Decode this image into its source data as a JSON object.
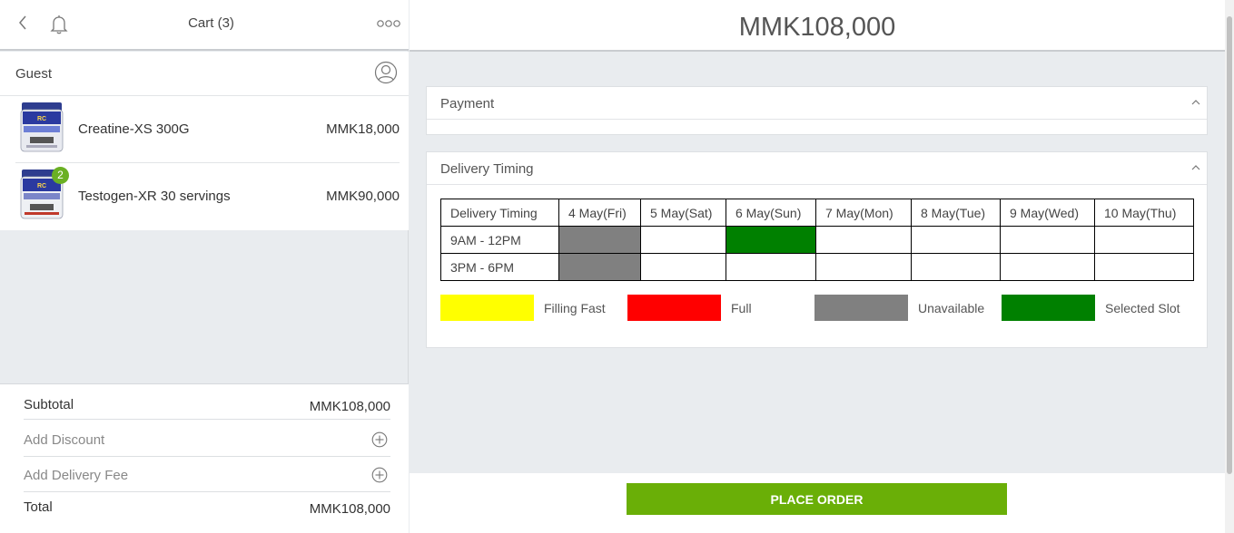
{
  "cart": {
    "title": "Cart (3)",
    "customer": "Guest",
    "items": [
      {
        "name": "Creatine-XS 300G",
        "price": "MMK18,000",
        "quantity_badge": ""
      },
      {
        "name": "Testogen-XR 30 servings",
        "price": "MMK90,000",
        "quantity_badge": "2"
      }
    ],
    "totals": {
      "subtotal_label": "Subtotal",
      "subtotal_value": "MMK108,000",
      "discount_label": "Add Discount",
      "delivery_fee_label": "Add Delivery Fee",
      "total_label": "Total",
      "total_value": "MMK108,000"
    }
  },
  "main": {
    "amount": "MMK108,000",
    "payment_section": {
      "title": "Payment"
    },
    "delivery_section": {
      "title": "Delivery Timing",
      "header_label": "Delivery Timing",
      "dates": [
        "4 May(Fri)",
        "5 May(Sat)",
        "6 May(Sun)",
        "7 May(Mon)",
        "8 May(Tue)",
        "9 May(Wed)",
        "10 May(Thu)"
      ],
      "time_slots": [
        {
          "label": "9AM - 12PM",
          "states": [
            "unavailable",
            "available",
            "selected",
            "available",
            "available",
            "available",
            "available"
          ]
        },
        {
          "label": "3PM - 6PM",
          "states": [
            "unavailable",
            "available",
            "available",
            "available",
            "available",
            "available",
            "available"
          ]
        }
      ],
      "legend": [
        {
          "label": "Filling Fast",
          "color": "#ffff00"
        },
        {
          "label": "Full",
          "color": "#ff0000"
        },
        {
          "label": "Unavailable",
          "color": "#808080"
        },
        {
          "label": "Selected Slot",
          "color": "#008000"
        }
      ]
    },
    "place_order_label": "PLACE ORDER"
  },
  "colors": {
    "accent_green": "#6aaf07",
    "badge_green": "#6ab023",
    "unavailable": "#808080",
    "selected": "#008000",
    "available": "#ffffff"
  }
}
